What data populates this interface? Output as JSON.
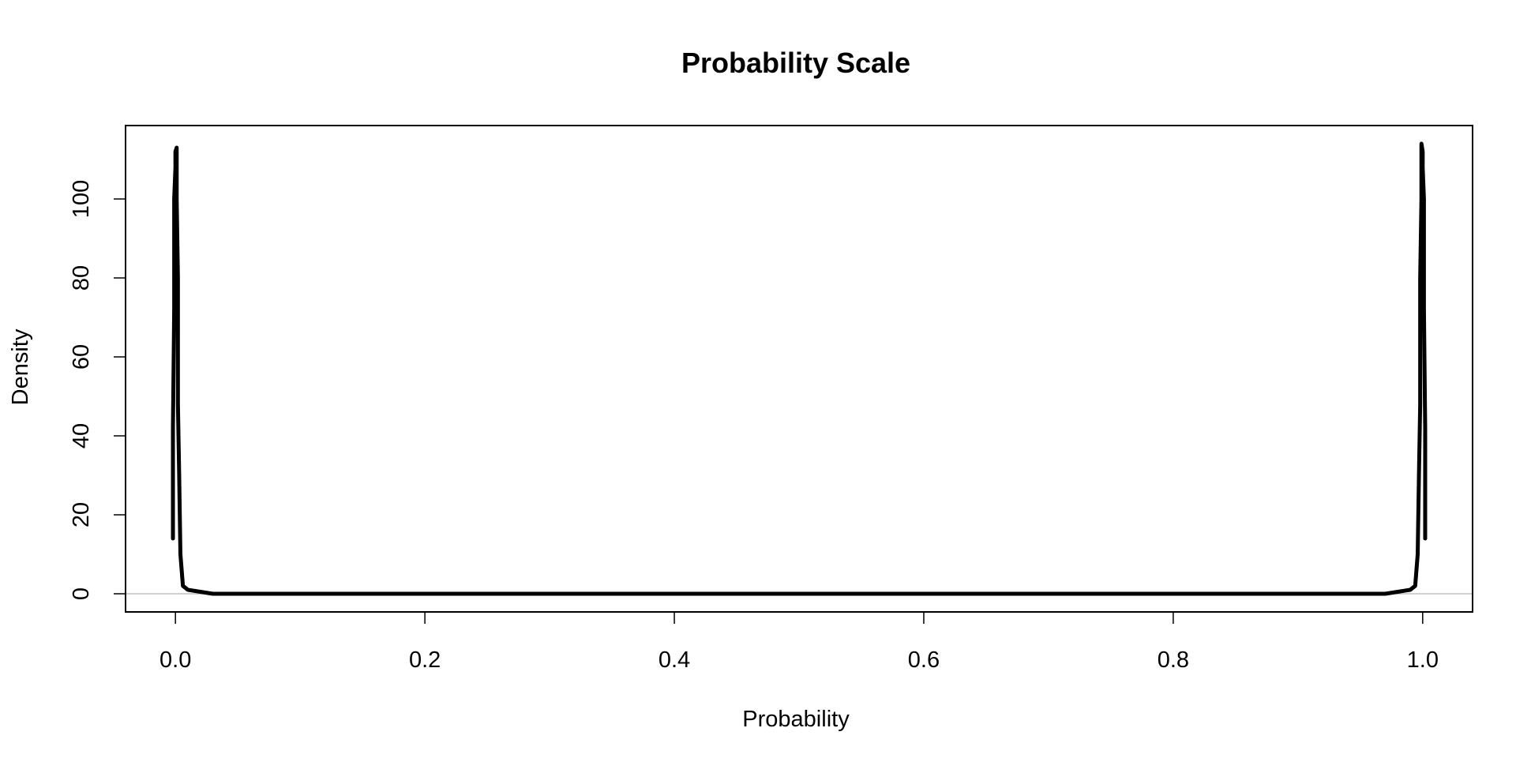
{
  "chart_data": {
    "type": "line",
    "title": "Probability Scale",
    "xlabel": "Probability",
    "ylabel": "Density",
    "xlim": [
      -0.04,
      1.04
    ],
    "ylim": [
      -4.6,
      118.6
    ],
    "x_ticks": [
      0.0,
      0.2,
      0.4,
      0.6,
      0.8,
      1.0
    ],
    "x_tick_labels": [
      "0.0",
      "0.2",
      "0.4",
      "0.6",
      "0.8",
      "1.0"
    ],
    "y_ticks": [
      0,
      20,
      40,
      60,
      80,
      100
    ],
    "y_tick_labels": [
      "0",
      "20",
      "40",
      "60",
      "80",
      "100"
    ],
    "reference_line": {
      "y": 0,
      "color": "#bebebe"
    },
    "grid": false,
    "legend": "none",
    "line_color": "#000000",
    "series": [
      {
        "x": [
          -0.002,
          -0.002,
          -0.001,
          -0.001,
          0.0,
          0.0,
          0.001,
          0.001,
          0.002,
          0.002,
          0.003,
          0.004,
          0.006,
          0.01,
          0.02,
          0.03,
          0.1,
          0.2,
          0.3,
          0.4,
          0.5,
          0.6,
          0.7,
          0.8,
          0.9,
          0.97,
          0.98,
          0.99,
          0.994,
          0.996,
          0.997,
          0.998,
          0.998,
          0.999,
          0.999,
          1.0,
          1.0,
          1.001,
          1.001,
          1.002,
          1.002
        ],
        "y": [
          14,
          42,
          72,
          100,
          108,
          112,
          113,
          100,
          80,
          48,
          30,
          10,
          2,
          1,
          0.5,
          0,
          0,
          0,
          0,
          0,
          0,
          0,
          0,
          0,
          0,
          0,
          0.5,
          1,
          2,
          10,
          30,
          48,
          80,
          100,
          114,
          112,
          108,
          100,
          72,
          42,
          14
        ]
      }
    ]
  }
}
